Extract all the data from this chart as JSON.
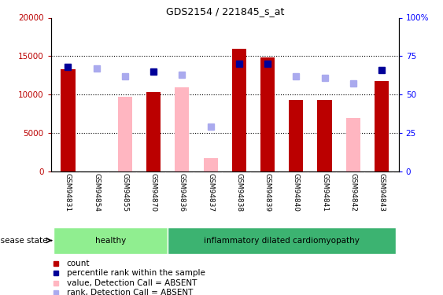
{
  "title": "GDS2154 / 221845_s_at",
  "samples": [
    "GSM94831",
    "GSM94854",
    "GSM94855",
    "GSM94870",
    "GSM94836",
    "GSM94837",
    "GSM94838",
    "GSM94839",
    "GSM94840",
    "GSM94841",
    "GSM94842",
    "GSM94843"
  ],
  "count_values": [
    13300,
    0,
    0,
    10300,
    0,
    0,
    16000,
    14800,
    9300,
    9300,
    0,
    11700
  ],
  "count_absent": [
    0,
    0,
    9700,
    0,
    10900,
    1700,
    0,
    0,
    0,
    0,
    6900,
    0
  ],
  "rank_present": [
    68,
    0,
    0,
    65,
    0,
    0,
    70,
    70,
    0,
    0,
    0,
    66
  ],
  "rank_absent": [
    0,
    67,
    62,
    0,
    63,
    29,
    0,
    0,
    62,
    61,
    57,
    0
  ],
  "disease_groups": [
    {
      "label": "healthy",
      "start": 0,
      "end": 4,
      "color": "#90EE90"
    },
    {
      "label": "inflammatory dilated cardiomyopathy",
      "start": 4,
      "end": 12,
      "color": "#3CB371"
    }
  ],
  "ylim_left": [
    0,
    20000
  ],
  "ylim_right": [
    0,
    100
  ],
  "yticks_left": [
    0,
    5000,
    10000,
    15000,
    20000
  ],
  "ytick_labels_left": [
    "0",
    "5000",
    "10000",
    "15000",
    "20000"
  ],
  "yticks_right": [
    0,
    25,
    50,
    75,
    100
  ],
  "ytick_labels_right": [
    "0",
    "25",
    "50",
    "75",
    "100%"
  ],
  "red_color": "#BB0000",
  "pink_color": "#FFB6C1",
  "blue_color": "#000099",
  "blue_absent_color": "#AAAAEE",
  "bg_color": "#FFFFFF",
  "tick_area_color": "#CCCCCC",
  "disease_state_label": "disease state",
  "legend_items": [
    {
      "color": "#BB0000",
      "label": "count"
    },
    {
      "color": "#000099",
      "label": "percentile rank within the sample"
    },
    {
      "color": "#FFB6C1",
      "label": "value, Detection Call = ABSENT"
    },
    {
      "color": "#AAAAEE",
      "label": "rank, Detection Call = ABSENT"
    }
  ]
}
